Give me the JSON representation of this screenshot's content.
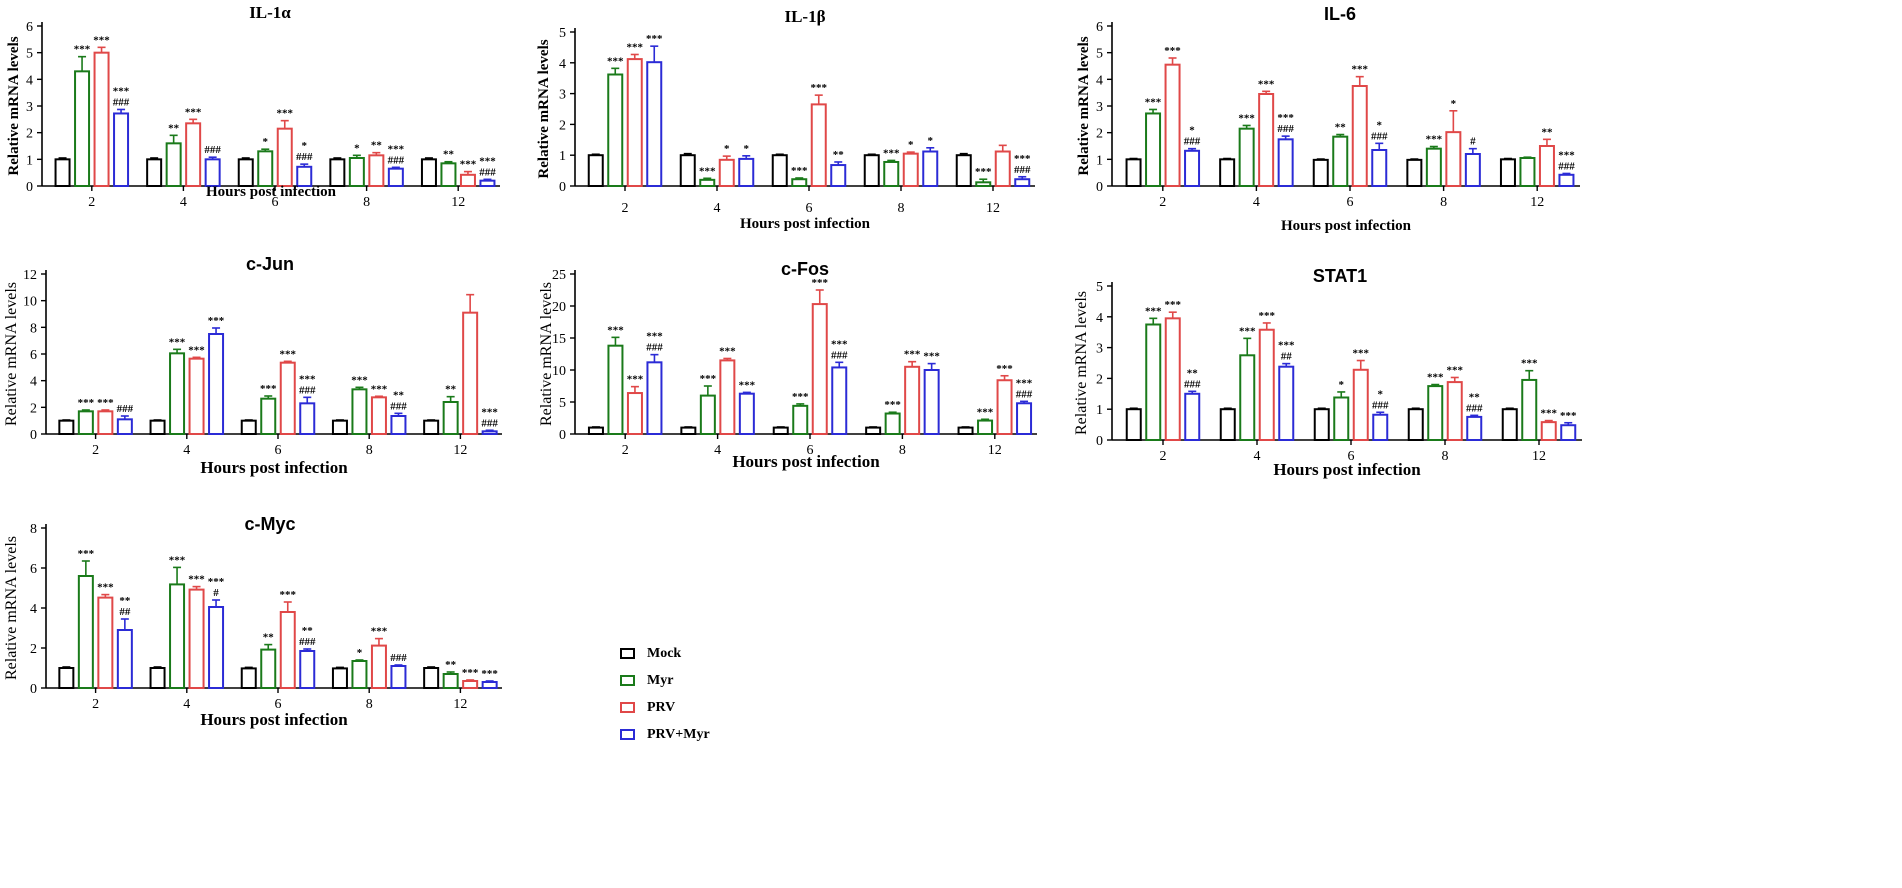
{
  "colors": {
    "Mock": "#000000",
    "Myr": "#1a7a1a",
    "PRV": "#e04848",
    "PRV+Myr": "#2b2bd6"
  },
  "legend": {
    "items": [
      {
        "label": "Mock",
        "color": "#000000"
      },
      {
        "label": "Myr",
        "color": "#1a7a1a"
      },
      {
        "label": "PRV",
        "color": "#e04848"
      },
      {
        "label": "PRV+Myr",
        "color": "#2b2bd6"
      }
    ]
  },
  "chart_data": [
    {
      "id": "il1a",
      "type": "bar",
      "title": "IL-1α",
      "xlabel": "Hours post infection",
      "ylabel": "Relative mRNA levels",
      "ylim": [
        0,
        6
      ],
      "yticks": [
        0,
        1,
        2,
        3,
        4,
        5,
        6
      ],
      "categories": [
        "2",
        "4",
        "6",
        "8",
        "12"
      ],
      "series": [
        {
          "name": "Mock",
          "values": [
            1.0,
            1.0,
            1.0,
            1.0,
            1.0
          ],
          "err": [
            0.05,
            0.05,
            0.05,
            0.05,
            0.05
          ],
          "sig": [
            [],
            [],
            [],
            [],
            []
          ]
        },
        {
          "name": "Myr",
          "values": [
            4.3,
            1.6,
            1.3,
            1.05,
            0.85
          ],
          "err": [
            0.55,
            0.3,
            0.08,
            0.1,
            0.06
          ],
          "sig": [
            [
              "***"
            ],
            [
              "**"
            ],
            [
              "*"
            ],
            [
              "*"
            ],
            [
              "**"
            ]
          ]
        },
        {
          "name": "PRV",
          "values": [
            5.0,
            2.35,
            2.15,
            1.15,
            0.42
          ],
          "err": [
            0.2,
            0.15,
            0.3,
            0.1,
            0.12
          ],
          "sig": [
            [
              "***"
            ],
            [
              "***"
            ],
            [
              "***"
            ],
            [
              "**"
            ],
            [
              "***"
            ]
          ]
        },
        {
          "name": "PRV+Myr",
          "values": [
            2.72,
            1.0,
            0.72,
            0.65,
            0.2
          ],
          "err": [
            0.15,
            0.08,
            0.1,
            0.05,
            0.05
          ],
          "sig": [
            [
              "***",
              "###"
            ],
            [
              "###"
            ],
            [
              "*",
              "###"
            ],
            [
              "***",
              "###"
            ],
            [
              "***",
              "###"
            ]
          ]
        }
      ]
    },
    {
      "id": "il1b",
      "type": "bar",
      "title": "IL-1β",
      "xlabel": "Hours post infection",
      "ylabel": "Relative mRNA levels",
      "ylim": [
        0,
        5
      ],
      "yticks": [
        0,
        1,
        2,
        3,
        4,
        5
      ],
      "categories": [
        "2",
        "4",
        "6",
        "8",
        "12"
      ],
      "series": [
        {
          "name": "Mock",
          "values": [
            1.0,
            1.0,
            1.0,
            1.0,
            1.0
          ],
          "err": [
            0.03,
            0.05,
            0.03,
            0.03,
            0.05
          ],
          "sig": [
            [],
            [],
            [],
            [],
            []
          ]
        },
        {
          "name": "Myr",
          "values": [
            3.62,
            0.2,
            0.22,
            0.78,
            0.12
          ],
          "err": [
            0.2,
            0.05,
            0.04,
            0.05,
            0.1
          ],
          "sig": [
            [
              "***"
            ],
            [
              "***"
            ],
            [
              "***"
            ],
            [
              "***"
            ],
            [
              "***"
            ]
          ]
        },
        {
          "name": "PRV",
          "values": [
            4.12,
            0.85,
            2.65,
            1.05,
            1.12
          ],
          "err": [
            0.15,
            0.12,
            0.3,
            0.05,
            0.2
          ],
          "sig": [
            [
              "***"
            ],
            [
              "*"
            ],
            [
              "***"
            ],
            [
              "*"
            ],
            []
          ]
        },
        {
          "name": "PRV+Myr",
          "values": [
            4.02,
            0.88,
            0.68,
            1.12,
            0.22
          ],
          "err": [
            0.52,
            0.1,
            0.1,
            0.12,
            0.08
          ],
          "sig": [
            [
              "***"
            ],
            [
              "*"
            ],
            [
              "**"
            ],
            [
              "*"
            ],
            [
              "***",
              "###"
            ]
          ]
        }
      ]
    },
    {
      "id": "il6",
      "type": "bar",
      "title": "IL-6",
      "xlabel": "Hours post infection",
      "ylabel": "Relative mRNA levels",
      "ylim": [
        0,
        6
      ],
      "yticks": [
        0,
        1,
        2,
        3,
        4,
        5,
        6
      ],
      "categories": [
        "2",
        "4",
        "6",
        "8",
        "12"
      ],
      "series": [
        {
          "name": "Mock",
          "values": [
            1.0,
            1.0,
            0.98,
            0.98,
            1.0
          ],
          "err": [
            0.03,
            0.03,
            0.03,
            0.03,
            0.03
          ],
          "sig": [
            [],
            [],
            [],
            [],
            []
          ]
        },
        {
          "name": "Myr",
          "values": [
            2.72,
            2.15,
            1.85,
            1.4,
            1.05
          ],
          "err": [
            0.15,
            0.12,
            0.08,
            0.08,
            0.03
          ],
          "sig": [
            [
              "***"
            ],
            [
              "***"
            ],
            [
              "**"
            ],
            [
              "***"
            ],
            []
          ]
        },
        {
          "name": "PRV",
          "values": [
            4.55,
            3.45,
            3.75,
            2.02,
            1.5
          ],
          "err": [
            0.25,
            0.1,
            0.35,
            0.8,
            0.25
          ],
          "sig": [
            [
              "***"
            ],
            [
              "***"
            ],
            [
              "***"
            ],
            [
              "*"
            ],
            [
              "**"
            ]
          ]
        },
        {
          "name": "PRV+Myr",
          "values": [
            1.32,
            1.75,
            1.35,
            1.2,
            0.42
          ],
          "err": [
            0.08,
            0.12,
            0.25,
            0.2,
            0.05
          ],
          "sig": [
            [
              "*",
              "###"
            ],
            [
              "***",
              "###"
            ],
            [
              "*",
              "###"
            ],
            [
              "#"
            ],
            [
              "***",
              "###"
            ]
          ]
        }
      ]
    },
    {
      "id": "cjun",
      "type": "bar",
      "title": "c-Jun",
      "xlabel": "Hours post infection",
      "ylabel": "Relative mRNA levels",
      "ylim": [
        0,
        12
      ],
      "yticks": [
        0,
        2,
        4,
        6,
        8,
        10,
        12
      ],
      "categories": [
        "2",
        "4",
        "6",
        "8",
        "12"
      ],
      "series": [
        {
          "name": "Mock",
          "values": [
            1.0,
            1.0,
            1.0,
            1.0,
            1.0
          ],
          "err": [
            0.05,
            0.05,
            0.05,
            0.05,
            0.05
          ],
          "sig": [
            [],
            [],
            [],
            [],
            []
          ]
        },
        {
          "name": "Myr",
          "values": [
            1.7,
            6.05,
            2.65,
            3.35,
            2.4
          ],
          "err": [
            0.1,
            0.3,
            0.2,
            0.15,
            0.4
          ],
          "sig": [
            [
              "***"
            ],
            [
              "***"
            ],
            [
              "***"
            ],
            [
              "***"
            ],
            [
              "**"
            ]
          ]
        },
        {
          "name": "PRV",
          "values": [
            1.7,
            5.65,
            5.35,
            2.75,
            9.1
          ],
          "err": [
            0.1,
            0.1,
            0.1,
            0.08,
            1.35
          ],
          "sig": [
            [
              "***"
            ],
            [
              "***"
            ],
            [
              "***"
            ],
            [
              "***"
            ],
            []
          ]
        },
        {
          "name": "PRV+Myr",
          "values": [
            1.1,
            7.5,
            2.3,
            1.35,
            0.2
          ],
          "err": [
            0.25,
            0.45,
            0.45,
            0.2,
            0.08
          ],
          "sig": [
            [
              "###"
            ],
            [
              "***"
            ],
            [
              "***",
              "###"
            ],
            [
              "**",
              "###"
            ],
            [
              "***",
              "###"
            ]
          ]
        }
      ]
    },
    {
      "id": "cfos",
      "type": "bar",
      "title": "c-Fos",
      "xlabel": "Hours post infection",
      "ylabel": "Relative mRNA levels",
      "ylim": [
        0,
        25
      ],
      "yticks": [
        0,
        5,
        10,
        15,
        20,
        25
      ],
      "categories": [
        "2",
        "4",
        "6",
        "8",
        "12"
      ],
      "series": [
        {
          "name": "Mock",
          "values": [
            1.0,
            1.0,
            1.0,
            1.0,
            1.0
          ],
          "err": [
            0.1,
            0.1,
            0.1,
            0.1,
            0.1
          ],
          "sig": [
            [],
            [],
            [],
            [],
            []
          ]
        },
        {
          "name": "Myr",
          "values": [
            13.8,
            6.0,
            4.4,
            3.2,
            2.1
          ],
          "err": [
            1.3,
            1.5,
            0.3,
            0.2,
            0.2
          ],
          "sig": [
            [
              "***"
            ],
            [
              "***"
            ],
            [
              "***"
            ],
            [
              "***"
            ],
            [
              "***"
            ]
          ]
        },
        {
          "name": "PRV",
          "values": [
            6.4,
            11.5,
            20.3,
            10.5,
            8.4
          ],
          "err": [
            1.0,
            0.3,
            2.2,
            0.8,
            0.7
          ],
          "sig": [
            [
              "***"
            ],
            [
              "***"
            ],
            [
              "***"
            ],
            [
              "***"
            ],
            [
              "***"
            ]
          ]
        },
        {
          "name": "PRV+Myr",
          "values": [
            11.2,
            6.3,
            10.4,
            10.0,
            4.8
          ],
          "err": [
            1.2,
            0.2,
            0.8,
            1.0,
            0.3
          ],
          "sig": [
            [
              "***",
              "###"
            ],
            [
              "***"
            ],
            [
              "***",
              "###"
            ],
            [
              "***"
            ],
            [
              "***",
              "###"
            ]
          ]
        }
      ]
    },
    {
      "id": "stat1",
      "type": "bar",
      "title": "STAT1",
      "xlabel": "Hours post infection",
      "ylabel": "Relative mRNA levels",
      "ylim": [
        0,
        5
      ],
      "yticks": [
        0,
        1,
        2,
        3,
        4,
        5
      ],
      "categories": [
        "2",
        "4",
        "6",
        "8",
        "12"
      ],
      "series": [
        {
          "name": "Mock",
          "values": [
            1.0,
            1.0,
            1.0,
            1.0,
            1.0
          ],
          "err": [
            0.03,
            0.03,
            0.03,
            0.03,
            0.03
          ],
          "sig": [
            [],
            [],
            [],
            [],
            []
          ]
        },
        {
          "name": "Myr",
          "values": [
            3.75,
            2.75,
            1.38,
            1.75,
            1.95
          ],
          "err": [
            0.2,
            0.55,
            0.18,
            0.05,
            0.3
          ],
          "sig": [
            [
              "***"
            ],
            [
              "***"
            ],
            [
              "*"
            ],
            [
              "***"
            ],
            [
              "***"
            ]
          ]
        },
        {
          "name": "PRV",
          "values": [
            3.95,
            3.58,
            2.28,
            1.88,
            0.58
          ],
          "err": [
            0.2,
            0.22,
            0.3,
            0.15,
            0.05
          ],
          "sig": [
            [
              "***"
            ],
            [
              "***"
            ],
            [
              "***"
            ],
            [
              "***"
            ],
            [
              "***"
            ]
          ]
        },
        {
          "name": "PRV+Myr",
          "values": [
            1.5,
            2.38,
            0.82,
            0.75,
            0.48
          ],
          "err": [
            0.08,
            0.1,
            0.08,
            0.05,
            0.08
          ],
          "sig": [
            [
              "**",
              "###"
            ],
            [
              "***",
              "##"
            ],
            [
              "*",
              "###"
            ],
            [
              "**",
              "###"
            ],
            [
              "***"
            ]
          ]
        }
      ]
    },
    {
      "id": "cmyc",
      "type": "bar",
      "title": "c-Myc",
      "xlabel": "Hours post infection",
      "ylabel": "Relative mRNA levels",
      "ylim": [
        0,
        8
      ],
      "yticks": [
        0,
        2,
        4,
        6,
        8
      ],
      "categories": [
        "2",
        "4",
        "6",
        "8",
        "12"
      ],
      "series": [
        {
          "name": "Mock",
          "values": [
            1.0,
            1.0,
            0.98,
            0.98,
            1.0
          ],
          "err": [
            0.05,
            0.05,
            0.05,
            0.05,
            0.05
          ],
          "sig": [
            [],
            [],
            [],
            [],
            []
          ]
        },
        {
          "name": "Myr",
          "values": [
            5.6,
            5.18,
            1.92,
            1.35,
            0.7
          ],
          "err": [
            0.75,
            0.85,
            0.25,
            0.05,
            0.1
          ],
          "sig": [
            [
              "***"
            ],
            [
              "***"
            ],
            [
              "**"
            ],
            [
              "*"
            ],
            [
              "**"
            ]
          ]
        },
        {
          "name": "PRV",
          "values": [
            4.52,
            4.92,
            3.8,
            2.12,
            0.35
          ],
          "err": [
            0.15,
            0.15,
            0.5,
            0.35,
            0.05
          ],
          "sig": [
            [
              "***"
            ],
            [
              "***"
            ],
            [
              "***"
            ],
            [
              "***"
            ],
            [
              "***"
            ]
          ]
        },
        {
          "name": "PRV+Myr",
          "values": [
            2.9,
            4.05,
            1.85,
            1.1,
            0.3
          ],
          "err": [
            0.55,
            0.35,
            0.1,
            0.05,
            0.05
          ],
          "sig": [
            [
              "**",
              "##"
            ],
            [
              "***",
              "#"
            ],
            [
              "**",
              "###"
            ],
            [
              "###"
            ],
            [
              "***"
            ]
          ]
        }
      ]
    }
  ]
}
